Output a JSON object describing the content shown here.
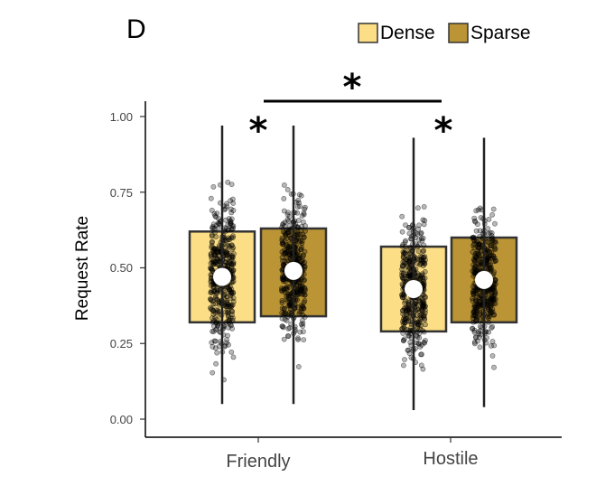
{
  "panel_label": "D",
  "chart_data": {
    "type": "box",
    "title": "",
    "xlabel": "",
    "ylabel": "Request Rate",
    "ylim": [
      0,
      1
    ],
    "yticks": [
      "0.00",
      "0.25",
      "0.50",
      "0.75",
      "1.00"
    ],
    "categories": [
      "Friendly",
      "Hostile"
    ],
    "legend": {
      "position": "top-right",
      "entries": [
        "Dense",
        "Sparse"
      ]
    },
    "series": [
      {
        "name": "Dense",
        "color": "#FCDE86",
        "boxes": [
          {
            "category": "Friendly",
            "min": 0.05,
            "q1": 0.32,
            "q3": 0.62,
            "mean": 0.47,
            "max": 0.97
          },
          {
            "category": "Hostile",
            "min": 0.03,
            "q1": 0.29,
            "q3": 0.57,
            "mean": 0.43,
            "max": 0.93
          }
        ]
      },
      {
        "name": "Sparse",
        "color": "#BB9535",
        "boxes": [
          {
            "category": "Friendly",
            "min": 0.05,
            "q1": 0.34,
            "q3": 0.63,
            "mean": 0.49,
            "max": 0.97
          },
          {
            "category": "Hostile",
            "min": 0.04,
            "q1": 0.32,
            "q3": 0.6,
            "mean": 0.46,
            "max": 0.93
          }
        ]
      }
    ],
    "annotations": [
      {
        "text": "*",
        "type": "within",
        "category": "Friendly"
      },
      {
        "text": "*",
        "type": "within",
        "category": "Hostile"
      },
      {
        "text": "*",
        "type": "between",
        "from": "Friendly",
        "to": "Hostile"
      }
    ]
  }
}
